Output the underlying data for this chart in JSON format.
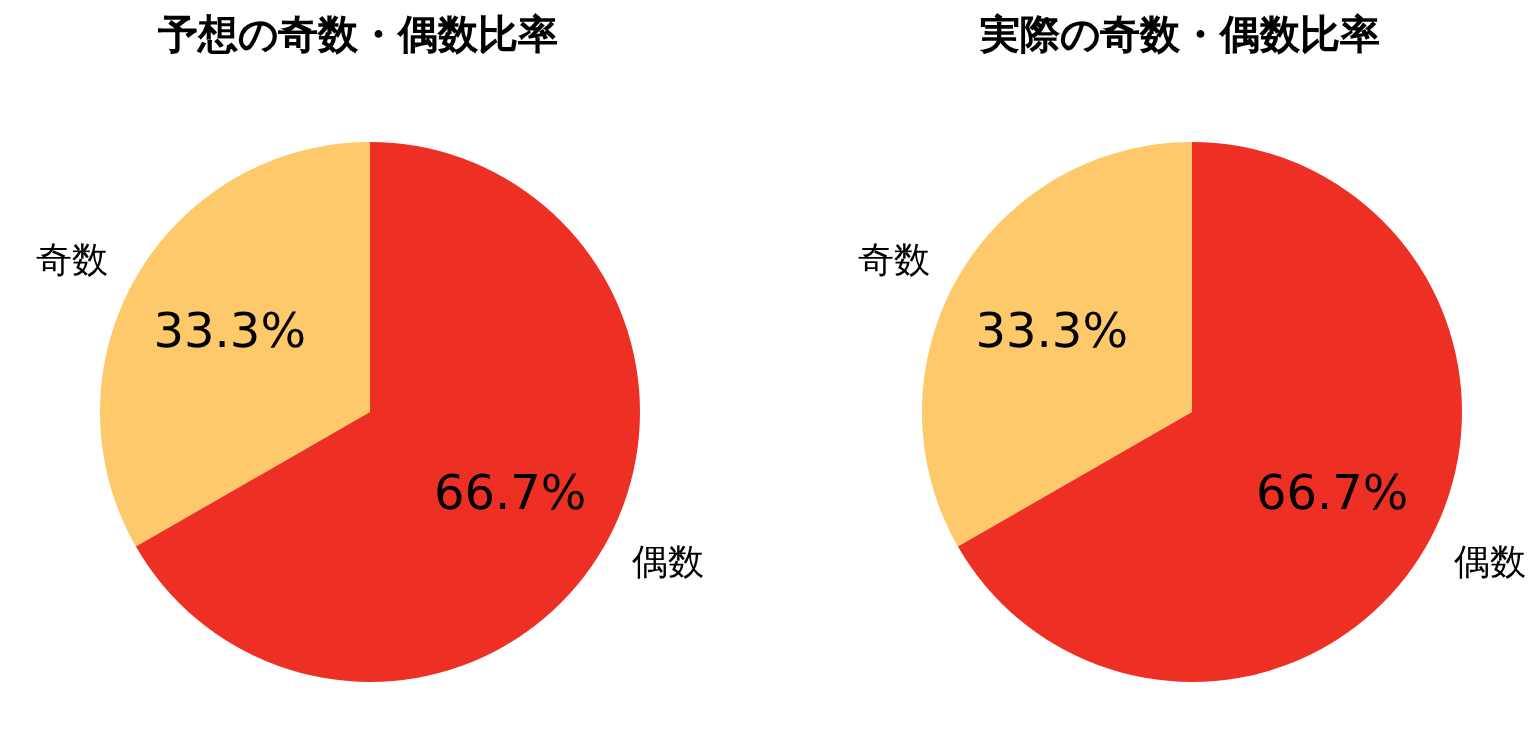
{
  "chart_data": [
    {
      "type": "pie",
      "title": "予想の奇数・偶数比率",
      "categories": [
        "奇数",
        "偶数"
      ],
      "values": [
        33.3,
        66.7
      ],
      "colors": [
        "#fdc96a",
        "#ee3024"
      ],
      "value_labels": [
        "33.3%",
        "66.7%"
      ]
    },
    {
      "type": "pie",
      "title": "実際の奇数・偶数比率",
      "categories": [
        "奇数",
        "偶数"
      ],
      "values": [
        33.3,
        66.7
      ],
      "colors": [
        "#fdc96a",
        "#ee3024"
      ],
      "value_labels": [
        "33.3%",
        "66.7%"
      ]
    }
  ]
}
